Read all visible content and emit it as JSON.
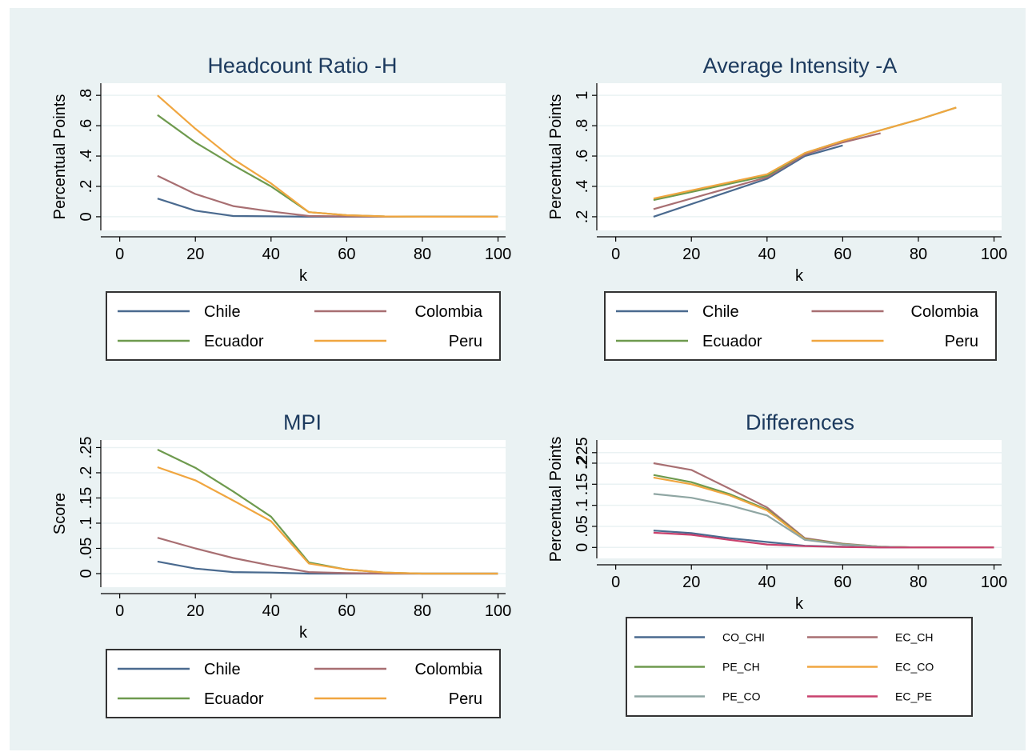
{
  "colors": {
    "background": "#eaf2f3",
    "plot_area": "#ffffff",
    "grid": "#eaf2f3",
    "legend_border": "#333333",
    "series": {
      "Chile": "#4a6a8f",
      "Colombia": "#a86f72",
      "Ecuador": "#6e9a4e",
      "Peru": "#f0a640",
      "CO_CHI": "#4a6a8f",
      "EC_CH": "#a86f72",
      "PE_CH": "#6e9a4e",
      "EC_CO": "#f0a640",
      "PE_CO": "#8fa6a3",
      "EC_PE": "#c9416d"
    }
  },
  "chart_data": [
    {
      "id": "headcount",
      "type": "line",
      "title": "Headcount Ratio -H",
      "xlabel": "k",
      "ylabel": "Percentual Points",
      "xlim": [
        -5,
        102
      ],
      "ylim": [
        -0.09,
        0.88
      ],
      "xticks": [
        0,
        20,
        40,
        60,
        80,
        100
      ],
      "yticks": [
        0,
        0.2,
        0.4,
        0.6,
        0.8
      ],
      "ytick_labels": [
        "0",
        ".2",
        ".4",
        ".6",
        ".8"
      ],
      "grid": true,
      "series": [
        {
          "name": "Chile",
          "x": [
            10,
            20,
            30,
            40,
            50,
            60,
            70,
            80,
            90,
            100
          ],
          "y": [
            0.12,
            0.04,
            0.005,
            0.003,
            0,
            0,
            0,
            0,
            0,
            0
          ]
        },
        {
          "name": "Colombia",
          "x": [
            10,
            20,
            30,
            40,
            50,
            60,
            70,
            80,
            90,
            100
          ],
          "y": [
            0.27,
            0.15,
            0.07,
            0.035,
            0.005,
            0.002,
            0,
            0,
            0,
            0
          ]
        },
        {
          "name": "Ecuador",
          "x": [
            10,
            20,
            30,
            40,
            50,
            60,
            70,
            80,
            90,
            100
          ],
          "y": [
            0.67,
            0.49,
            0.34,
            0.2,
            0.03,
            0.01,
            0.002,
            0,
            0,
            0
          ]
        },
        {
          "name": "Peru",
          "x": [
            10,
            20,
            30,
            40,
            50,
            60,
            70,
            80,
            90,
            100
          ],
          "y": [
            0.8,
            0.58,
            0.38,
            0.22,
            0.03,
            0.01,
            0.002,
            0,
            0,
            0
          ]
        }
      ],
      "legend": {
        "placement": "below",
        "entries": [
          "Chile",
          "Colombia",
          "Ecuador",
          "Peru"
        ]
      }
    },
    {
      "id": "intensity",
      "type": "line",
      "title": "Average Intensity -A",
      "xlabel": "k",
      "ylabel": "Percentual Points",
      "xlim": [
        -5,
        102
      ],
      "ylim": [
        0.11,
        1.08
      ],
      "xticks": [
        0,
        20,
        40,
        60,
        80,
        100
      ],
      "yticks": [
        0.2,
        0.4,
        0.6,
        0.8,
        1
      ],
      "ytick_labels": [
        ".2",
        ".4",
        ".6",
        ".8",
        "1"
      ],
      "grid": true,
      "series": [
        {
          "name": "Chile",
          "x": [
            10,
            40,
            50,
            60
          ],
          "y": [
            0.2,
            0.45,
            0.6,
            0.67
          ]
        },
        {
          "name": "Colombia",
          "x": [
            10,
            40,
            50,
            60,
            70
          ],
          "y": [
            0.25,
            0.46,
            0.61,
            0.69,
            0.75
          ]
        },
        {
          "name": "Ecuador",
          "x": [
            10,
            40,
            50,
            60,
            70,
            80,
            90
          ],
          "y": [
            0.31,
            0.47,
            0.62,
            0.7,
            0.77,
            0.84,
            0.92
          ]
        },
        {
          "name": "Peru",
          "x": [
            10,
            40,
            50,
            60,
            70,
            80,
            90
          ],
          "y": [
            0.32,
            0.48,
            0.62,
            0.7,
            0.77,
            0.84,
            0.92
          ]
        }
      ],
      "legend": {
        "placement": "below",
        "entries": [
          "Chile",
          "Colombia",
          "Ecuador",
          "Peru"
        ]
      }
    },
    {
      "id": "mpi",
      "type": "line",
      "title": "MPI",
      "xlabel": "k",
      "ylabel": "Score",
      "xlim": [
        -5,
        102
      ],
      "ylim": [
        -0.027,
        0.265
      ],
      "xticks": [
        0,
        20,
        40,
        60,
        80,
        100
      ],
      "yticks": [
        0,
        0.05,
        0.1,
        0.15,
        0.2,
        0.25
      ],
      "ytick_labels": [
        "0",
        ".05",
        ".1",
        ".15",
        ".2",
        ".25"
      ],
      "grid": true,
      "series": [
        {
          "name": "Chile",
          "x": [
            10,
            20,
            30,
            40,
            50,
            60,
            70,
            80,
            90,
            100
          ],
          "y": [
            0.024,
            0.01,
            0.003,
            0.002,
            0,
            0,
            0,
            0,
            0,
            0
          ]
        },
        {
          "name": "Colombia",
          "x": [
            10,
            20,
            30,
            40,
            50,
            60,
            70,
            80,
            90,
            100
          ],
          "y": [
            0.071,
            0.05,
            0.031,
            0.016,
            0.003,
            0.001,
            0,
            0,
            0,
            0
          ]
        },
        {
          "name": "Ecuador",
          "x": [
            10,
            20,
            30,
            40,
            50,
            60,
            70,
            80,
            90,
            100
          ],
          "y": [
            0.246,
            0.21,
            0.163,
            0.113,
            0.022,
            0.008,
            0.002,
            0,
            0,
            0
          ]
        },
        {
          "name": "Peru",
          "x": [
            10,
            20,
            30,
            40,
            50,
            60,
            70,
            80,
            90,
            100
          ],
          "y": [
            0.211,
            0.185,
            0.145,
            0.104,
            0.02,
            0.008,
            0.002,
            0,
            0,
            0
          ]
        }
      ],
      "legend": {
        "placement": "below",
        "entries": [
          "Chile",
          "Colombia",
          "Ecuador",
          "Peru"
        ]
      }
    },
    {
      "id": "differences",
      "type": "line",
      "title": "Differences",
      "xlabel": "k",
      "ylabel": "Percentual Points",
      "xlim": [
        -5,
        102
      ],
      "ylim": [
        -0.026,
        0.255
      ],
      "xticks": [
        0,
        20,
        40,
        60,
        80,
        100
      ],
      "yticks": [
        0,
        0.05,
        0.1,
        0.15,
        0.2,
        0.225
      ],
      "ytick_labels": [
        "0",
        ".05",
        ".1",
        ".15",
        ".2",
        ".225"
      ],
      "grid": true,
      "series": [
        {
          "name": "CO_CHI",
          "x": [
            10,
            20,
            30,
            40,
            50,
            60,
            70,
            80,
            90,
            100
          ],
          "y": [
            0.04,
            0.034,
            0.022,
            0.013,
            0.004,
            0.002,
            0,
            0,
            0,
            0
          ]
        },
        {
          "name": "EC_CH",
          "x": [
            10,
            20,
            30,
            40,
            50,
            60,
            70,
            80,
            90,
            100
          ],
          "y": [
            0.2,
            0.184,
            0.14,
            0.095,
            0.022,
            0.009,
            0.002,
            0,
            0,
            0
          ]
        },
        {
          "name": "PE_CH",
          "x": [
            10,
            20,
            30,
            40,
            50,
            60,
            70,
            80,
            90,
            100
          ],
          "y": [
            0.172,
            0.155,
            0.127,
            0.09,
            0.02,
            0.008,
            0.002,
            0,
            0,
            0
          ]
        },
        {
          "name": "EC_CO",
          "x": [
            10,
            20,
            30,
            40,
            50,
            60,
            70,
            80,
            90,
            100
          ],
          "y": [
            0.166,
            0.15,
            0.124,
            0.088,
            0.019,
            0.007,
            0.002,
            0,
            0,
            0
          ]
        },
        {
          "name": "PE_CO",
          "x": [
            10,
            20,
            30,
            40,
            50,
            60,
            70,
            80,
            90,
            100
          ],
          "y": [
            0.127,
            0.118,
            0.1,
            0.076,
            0.018,
            0.007,
            0.002,
            0,
            0,
            0
          ]
        },
        {
          "name": "EC_PE",
          "x": [
            10,
            20,
            30,
            40,
            50,
            60,
            70,
            80,
            90,
            100
          ],
          "y": [
            0.035,
            0.03,
            0.018,
            0.007,
            0.003,
            0.001,
            0,
            0,
            0,
            0
          ]
        }
      ],
      "legend": {
        "placement": "below",
        "entries": [
          "CO_CHI",
          "EC_CH",
          "PE_CH",
          "EC_CO",
          "PE_CO",
          "EC_PE"
        ]
      }
    }
  ]
}
